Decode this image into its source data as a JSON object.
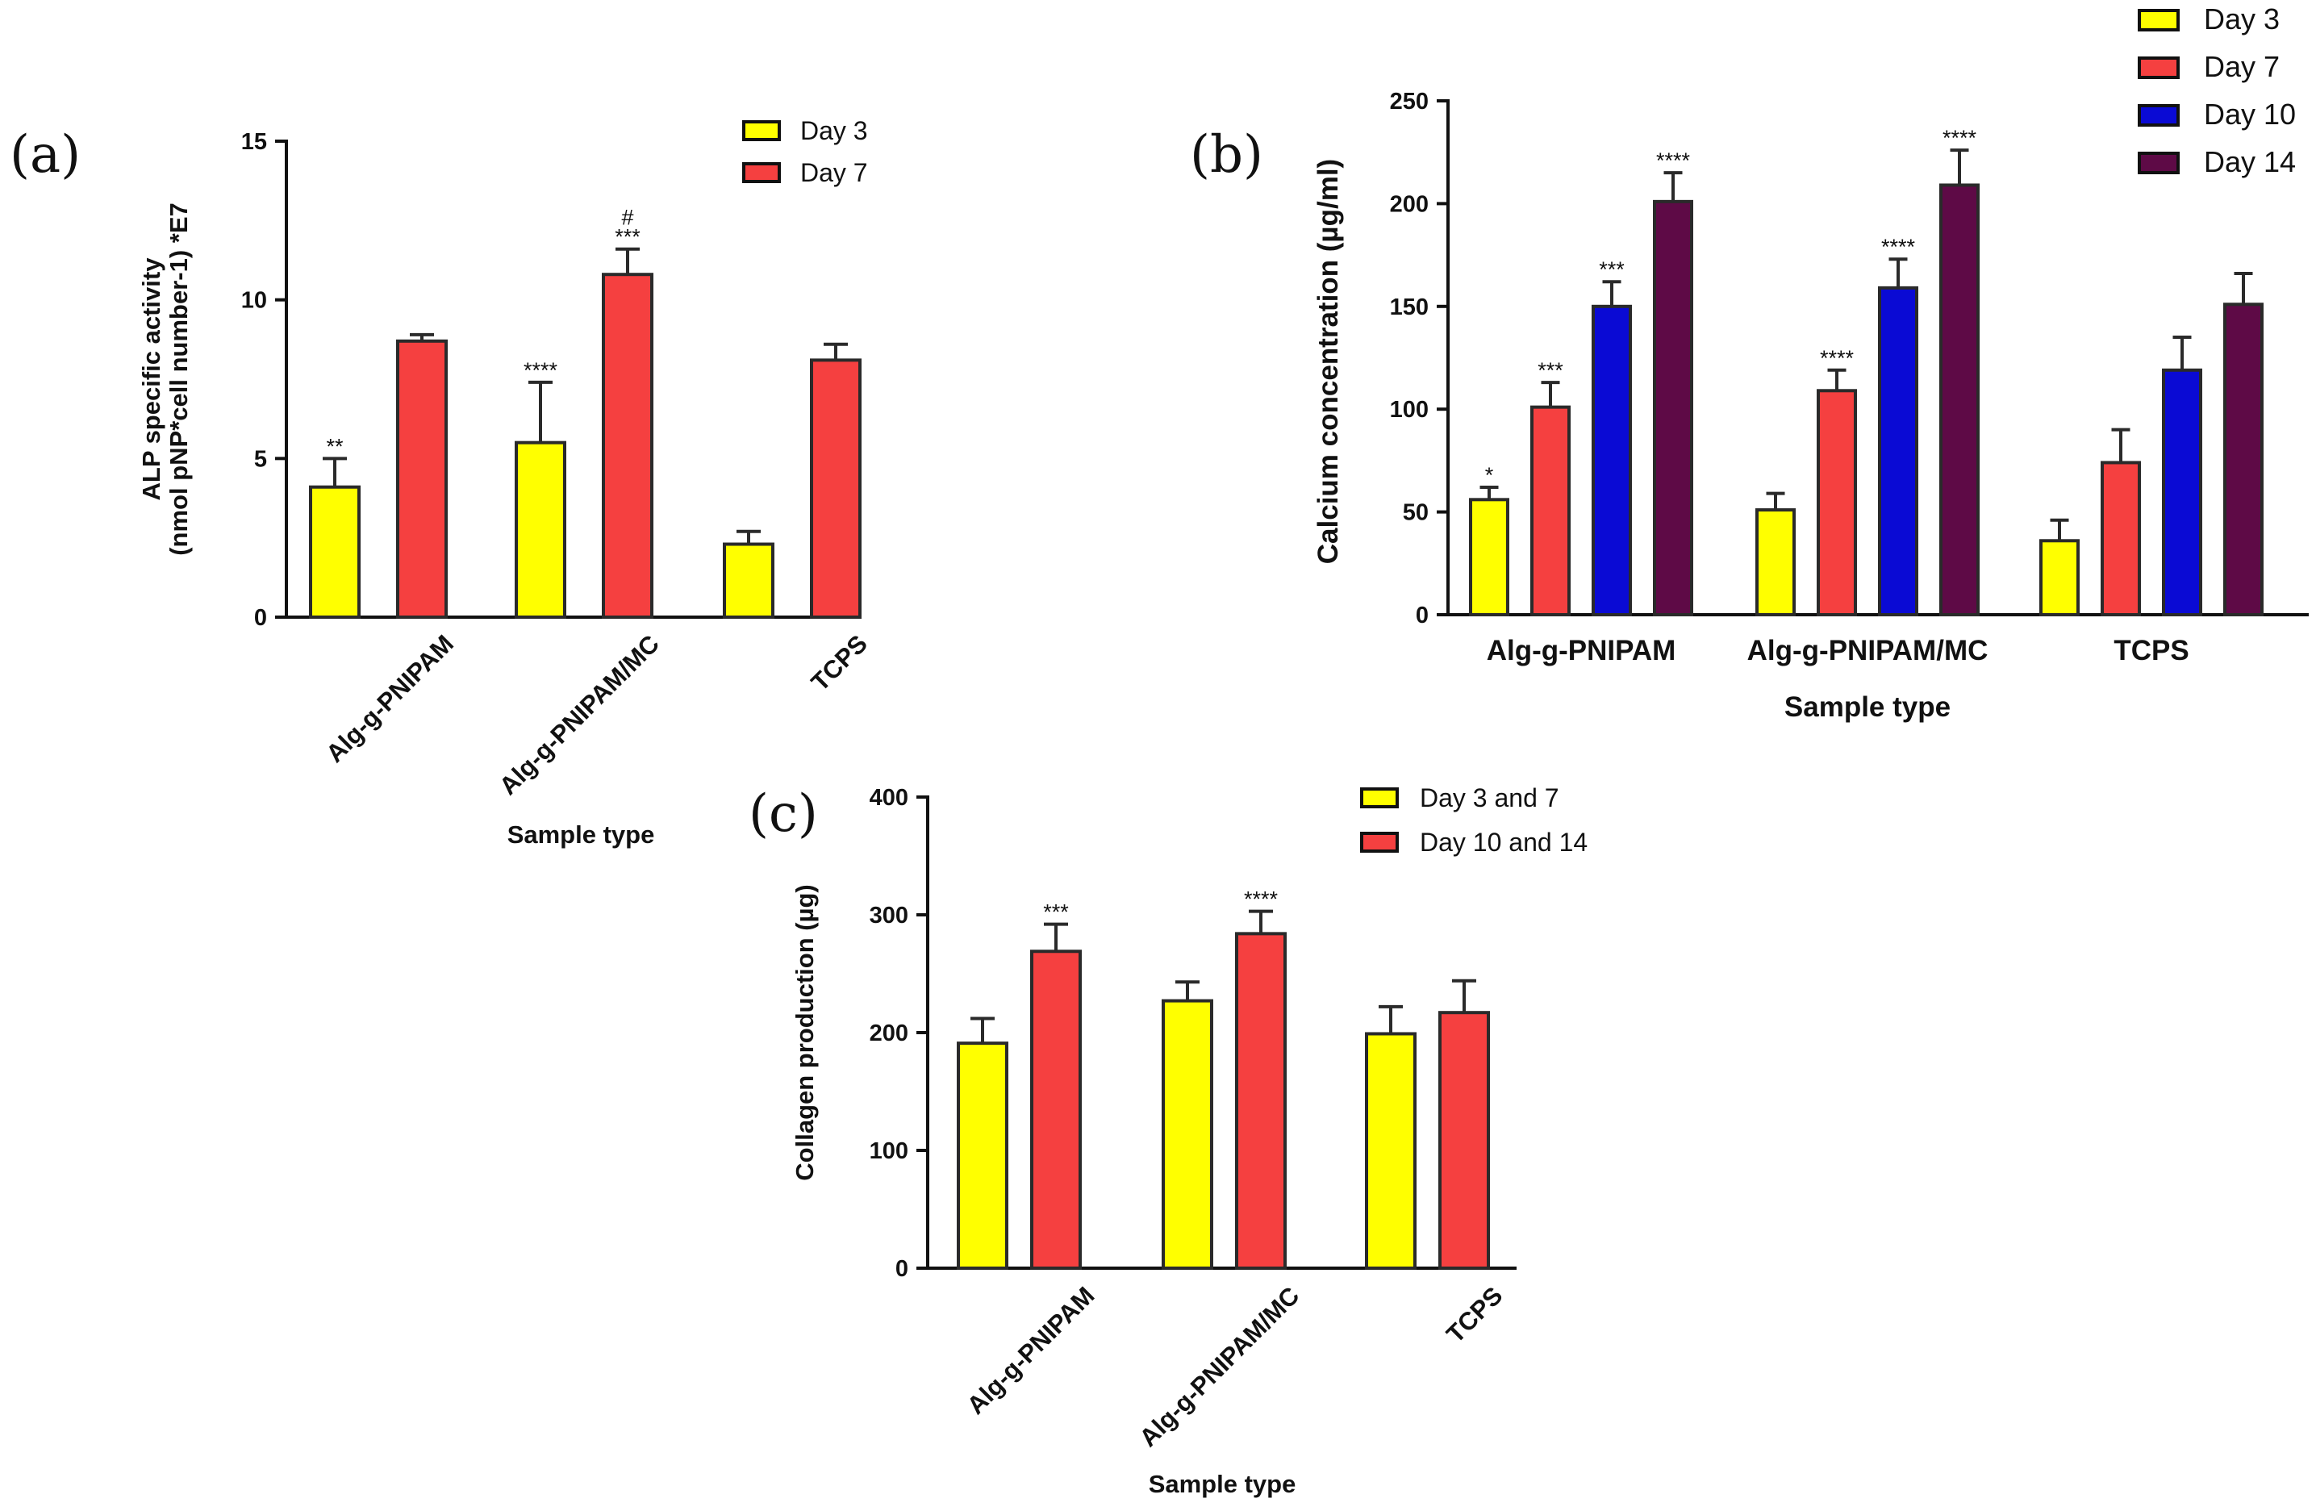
{
  "colors": {
    "yellow": "#ffff00",
    "red": "#f54040",
    "blue": "#0a0ad4",
    "purple": "#5e0a46",
    "axis": "#111111"
  },
  "chart_data": [
    {
      "id": "a",
      "type": "bar",
      "panel_label": "(a)",
      "title": "",
      "xlabel": "Sample type",
      "ylabel": [
        "ALP specific activity",
        "(nmol pNP*cell number-1) *E7"
      ],
      "ylim": [
        0,
        15
      ],
      "yticks": [
        0,
        5,
        10,
        15
      ],
      "categories": [
        "Alg-g-PNIPAM",
        "Alg-g-PNIPAM/MC",
        "TCPS"
      ],
      "series": [
        {
          "name": "Day 3",
          "color": "#ffff00",
          "values": [
            4.1,
            5.5,
            2.3
          ],
          "errors": [
            0.9,
            1.9,
            0.4
          ],
          "annotations": [
            "**",
            "****",
            ""
          ]
        },
        {
          "name": "Day 7",
          "color": "#f54040",
          "values": [
            8.7,
            10.8,
            8.1
          ],
          "errors": [
            0.2,
            0.8,
            0.5
          ],
          "annotations": [
            "",
            "***",
            ""
          ],
          "annotations2": [
            "",
            "#",
            ""
          ]
        }
      ],
      "legend_position": "top-right"
    },
    {
      "id": "b",
      "type": "bar",
      "panel_label": "(b)",
      "title": "",
      "xlabel": "Sample type",
      "ylabel": "Calcium concentration (µg/ml)",
      "ylim": [
        0,
        250
      ],
      "yticks": [
        0,
        50,
        100,
        150,
        200,
        250
      ],
      "categories": [
        "Alg-g-PNIPAM",
        "Alg-g-PNIPAM/MC",
        "TCPS"
      ],
      "series": [
        {
          "name": "Day 3",
          "color": "#ffff00",
          "values": [
            56,
            51,
            36
          ],
          "errors": [
            6,
            8,
            10
          ],
          "annotations": [
            "*",
            "",
            ""
          ]
        },
        {
          "name": "Day 7",
          "color": "#f54040",
          "values": [
            101,
            109,
            74
          ],
          "errors": [
            12,
            10,
            16
          ],
          "annotations": [
            "***",
            "****",
            ""
          ]
        },
        {
          "name": "Day 10",
          "color": "#0a0ad4",
          "values": [
            150,
            159,
            119
          ],
          "errors": [
            12,
            14,
            16
          ],
          "annotations": [
            "***",
            "****",
            ""
          ]
        },
        {
          "name": "Day 14",
          "color": "#5e0a46",
          "values": [
            201,
            209,
            151
          ],
          "errors": [
            14,
            17,
            15
          ],
          "annotations": [
            "****",
            "****",
            ""
          ]
        }
      ],
      "legend_position": "top-right"
    },
    {
      "id": "c",
      "type": "bar",
      "panel_label": "(c)",
      "title": "",
      "xlabel": "Sample type",
      "ylabel": "Collagen production (µg)",
      "ylim": [
        0,
        400
      ],
      "yticks": [
        0,
        100,
        200,
        300,
        400
      ],
      "categories": [
        "Alg-g-PNIPAM",
        "Alg-g-PNIPAM/MC",
        "TCPS"
      ],
      "series": [
        {
          "name": "Day 3 and 7",
          "color": "#ffff00",
          "values": [
            191,
            227,
            199
          ],
          "errors": [
            21,
            16,
            23
          ],
          "annotations": [
            "",
            "",
            ""
          ]
        },
        {
          "name": "Day 10 and 14",
          "color": "#f54040",
          "values": [
            269,
            284,
            217
          ],
          "errors": [
            23,
            19,
            27
          ],
          "annotations": [
            "***",
            "****",
            ""
          ]
        }
      ],
      "legend_position": "top-right"
    }
  ]
}
